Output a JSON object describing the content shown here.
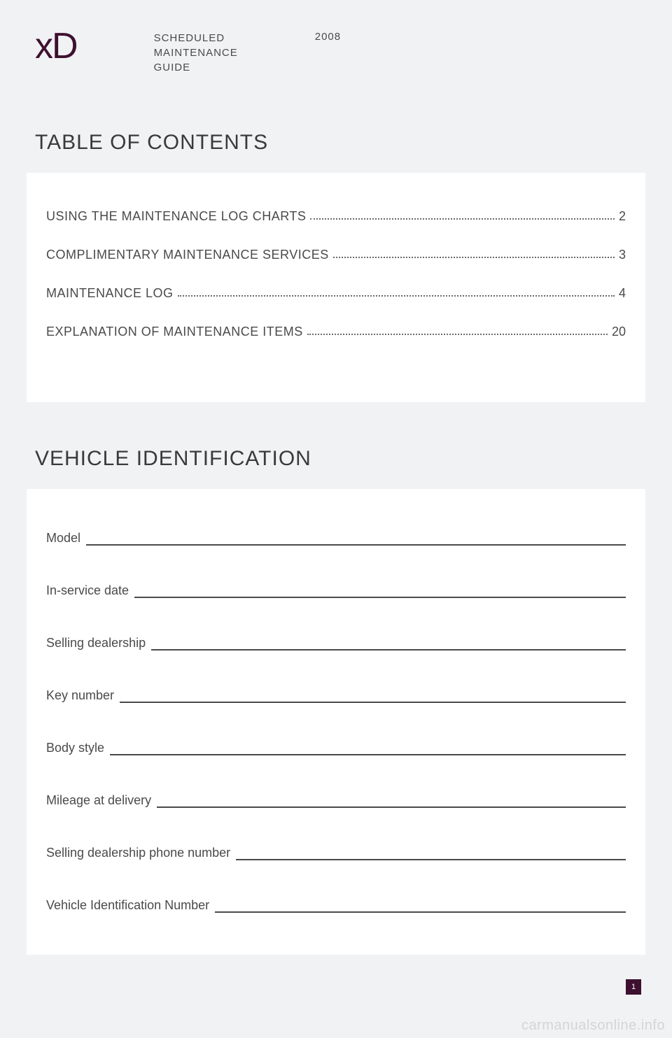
{
  "header": {
    "logo": "xD",
    "subtitle_l1": "SCHEDULED",
    "subtitle_l2": "MAINTENANCE",
    "subtitle_l3": "GUIDE",
    "year": "2008"
  },
  "sections": {
    "toc_title": "TABLE OF CONTENTS",
    "vehicle_title": "VEHICLE IDENTIFICATION"
  },
  "toc": [
    {
      "label": "USING THE MAINTENANCE LOG CHARTS",
      "page": "2"
    },
    {
      "label": "COMPLIMENTARY MAINTENANCE SERVICES",
      "page": "3"
    },
    {
      "label": "MAINTENANCE LOG",
      "page": "4"
    },
    {
      "label": "EXPLANATION OF MAINTENANCE ITEMS",
      "page": "20"
    }
  ],
  "fields": [
    "Model",
    "In-service date",
    "Selling dealership",
    "Key number",
    "Body style",
    "Mileage at delivery",
    "Selling dealership phone number",
    "Vehicle Identification Number"
  ],
  "page_number": "1",
  "watermark": "carmanualsonline.info",
  "styling": {
    "page_bg": "#f1f2f4",
    "card_bg": "#ffffff",
    "text_color": "#3a3a3a",
    "muted_text": "#4a4a4a",
    "accent_color": "#3e1030",
    "line_color": "#4a4a4a",
    "watermark_color": "#d5d5d5",
    "logo_fontsize": 52,
    "section_title_fontsize": 30,
    "body_fontsize": 18,
    "subtitle_fontsize": 15
  }
}
